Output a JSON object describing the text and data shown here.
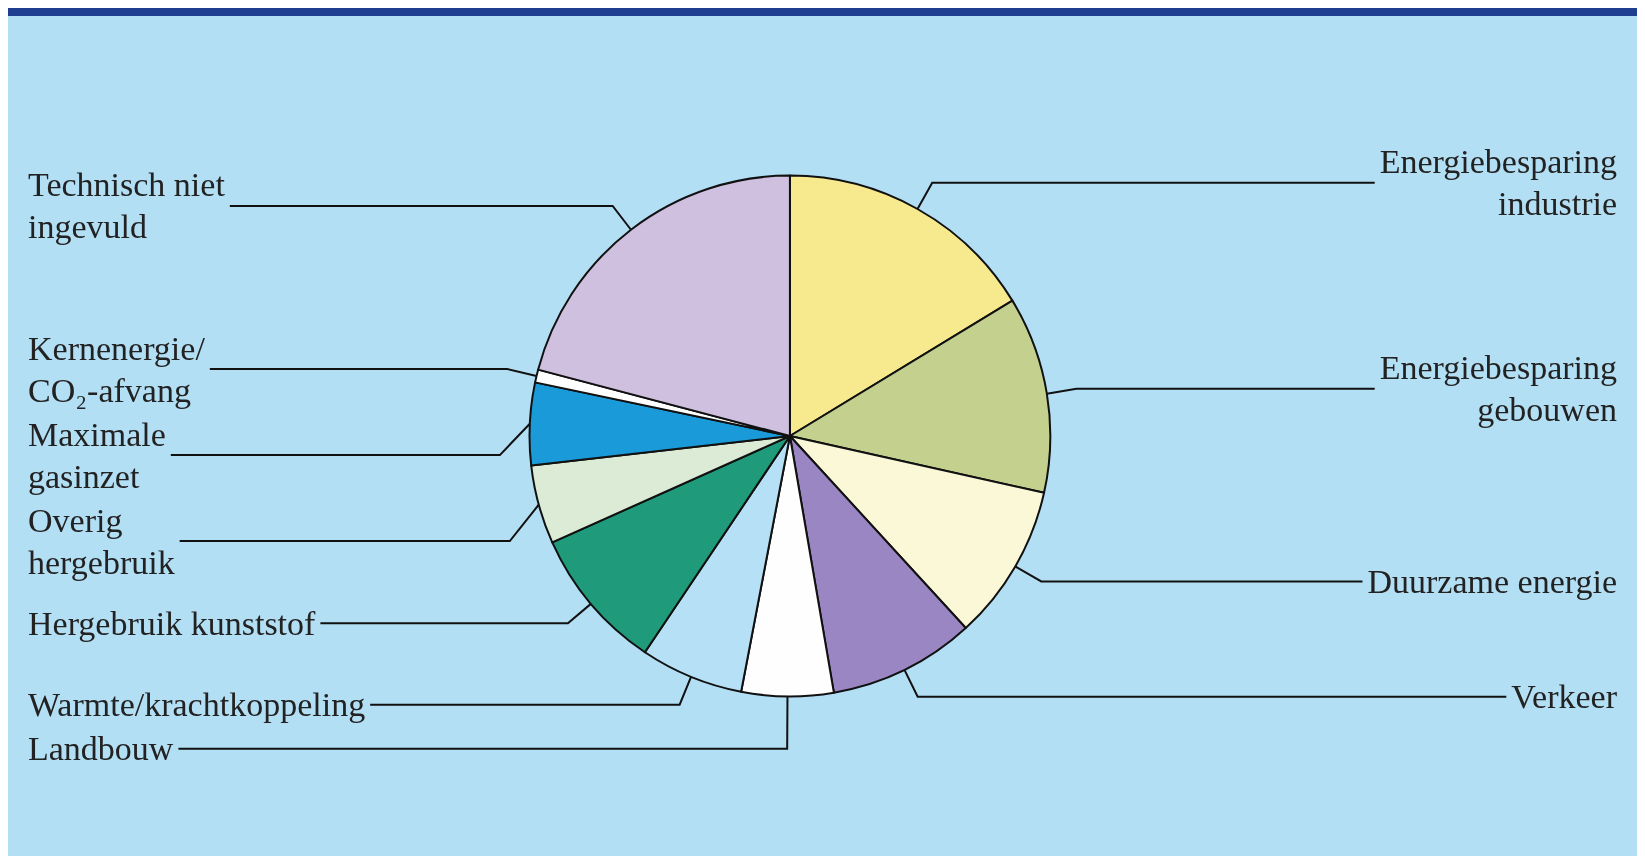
{
  "chart_data": {
    "type": "pie",
    "categories": [
      "Energiebesparing\nindustrie",
      "Energiebesparing\ngebouwen",
      "Duurzame energie",
      "Verkeer",
      "Landbouw",
      "Warmte/krachtkoppeling",
      "Hergebruik kunststof",
      "Overig\nhergebruik",
      "Maximale\ngasinzet",
      "Kernenergie/\nCO₂-afvang",
      "Technisch niet\ningevuld"
    ],
    "values": [
      16.3,
      12.2,
      9.7,
      9.1,
      5.7,
      6.4,
      8.9,
      4.9,
      5.1,
      0.8,
      20.9
    ],
    "colors": [
      "#f7e98e",
      "#c3d08e",
      "#fbf8d8",
      "#9b86c4",
      "#fefefe",
      "#b6e0f5",
      "#1f9a7a",
      "#dcebd5",
      "#1a9ad8",
      "#ffffff",
      "#cfc0e0"
    ],
    "legend": false
  }
}
